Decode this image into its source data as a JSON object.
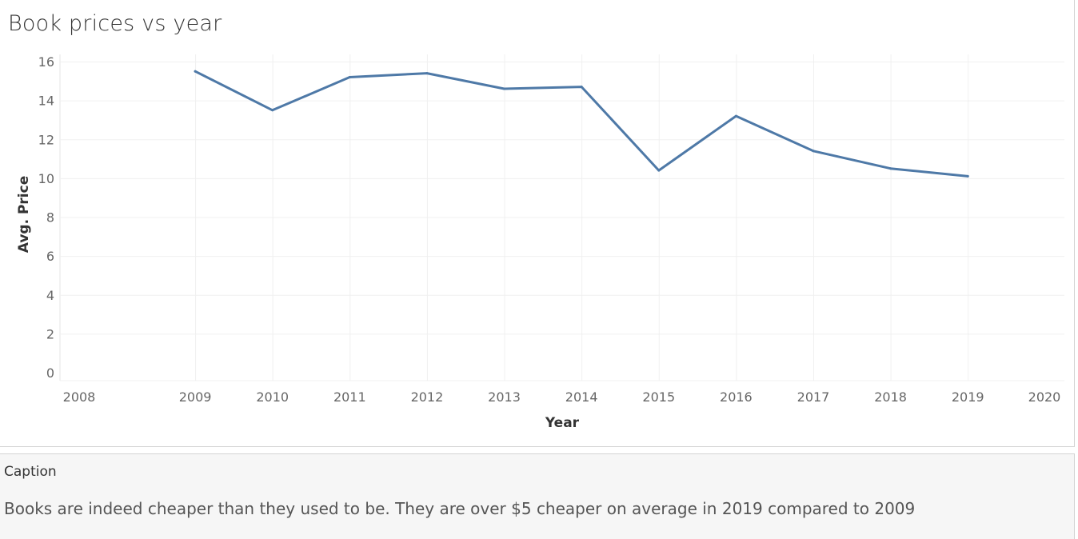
{
  "chart_data": {
    "type": "line",
    "title": "Book prices vs year",
    "xlabel": "Year",
    "ylabel": "Avg. Price",
    "xlim": [
      2008,
      2020
    ],
    "ylim": [
      0,
      16
    ],
    "x_ticks": [
      "2008",
      "2009",
      "2010",
      "2011",
      "2012",
      "2013",
      "2014",
      "2015",
      "2016",
      "2017",
      "2018",
      "2019",
      "2020"
    ],
    "y_ticks": [
      "0",
      "2",
      "4",
      "6",
      "8",
      "10",
      "12",
      "14",
      "16"
    ],
    "grid": true,
    "line_color": "#4e79a7",
    "series": [
      {
        "x": [
          2009,
          2010,
          2011,
          2012,
          2013,
          2014,
          2015,
          2016,
          2017,
          2018,
          2019
        ],
        "values": [
          15.5,
          13.5,
          15.2,
          15.4,
          14.6,
          14.7,
          10.4,
          13.2,
          11.4,
          10.5,
          10.1
        ]
      }
    ]
  },
  "caption": {
    "title": "Caption",
    "text": "Books are indeed cheaper than they used to be. They are over $5 cheaper on average in 2019 compared to 2009"
  }
}
